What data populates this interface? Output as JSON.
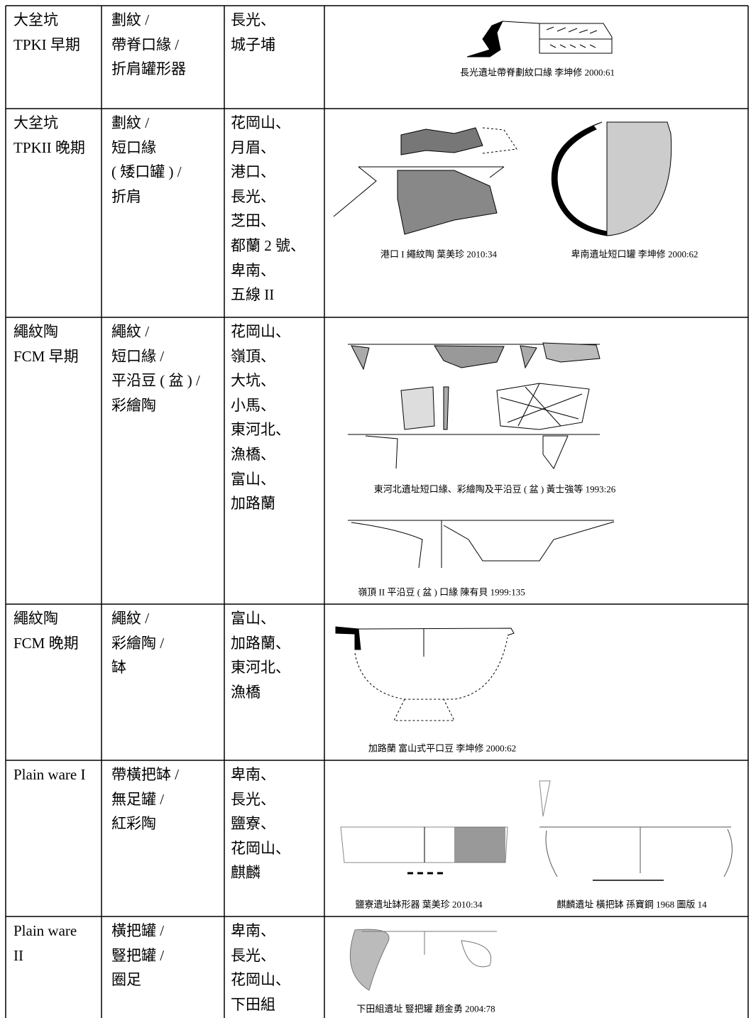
{
  "table": {
    "rows": [
      {
        "phase": [
          "大坌坑",
          "TPKI 早期"
        ],
        "features": [
          "劃紋 /",
          "帶脊口緣 /",
          "折肩罐形器"
        ],
        "sites": [
          "長光、",
          "城子埔"
        ],
        "captions": [
          "長光遺址帶脊劃紋口緣 李坤修 2000:61"
        ]
      },
      {
        "phase": [
          "大坌坑",
          "TPKII 晚期"
        ],
        "features": [
          "劃紋 /",
          "短口緣",
          "( 矮口罐 ) /",
          "折肩"
        ],
        "sites": [
          "花岡山、",
          "月眉、",
          "港口、",
          "長光、",
          "芝田、",
          "都蘭 2 號、",
          "卑南、",
          "五線 II"
        ],
        "captions": [
          "港口 I 繩紋陶 葉美珍 2010:34",
          "卑南遺址短口罐 李坤修 2000:62"
        ]
      },
      {
        "phase": [
          "繩紋陶",
          "FCM 早期"
        ],
        "features": [
          "繩紋 /",
          "短口緣 /",
          "平沿豆 ( 盆 ) /",
          "彩繪陶"
        ],
        "sites": [
          "花岡山、",
          "嶺頂、",
          "大坑、",
          "小馬、",
          "東河北、",
          "漁橋、",
          "富山、",
          "加路蘭"
        ],
        "captions": [
          "東河北遺址短口緣、彩繪陶及平沿豆 ( 盆 ) 黃士強等 1993:26",
          "嶺頂 II 平沿豆 ( 盆 ) 口緣 陳有貝 1999:135"
        ]
      },
      {
        "phase": [
          "繩紋陶",
          "FCM 晚期"
        ],
        "features": [
          "繩紋 /",
          "彩繪陶 /",
          "缽"
        ],
        "sites": [
          "富山、",
          "加路蘭、",
          "東河北、",
          "漁橋"
        ],
        "captions": [
          "加路蘭 富山式平口豆 李坤修 2000:62"
        ]
      },
      {
        "phase": [
          "Plain ware I"
        ],
        "features": [
          "帶橫把缽 /",
          "無足罐 /",
          "紅彩陶"
        ],
        "sites": [
          "卑南、",
          "長光、",
          "鹽寮、",
          "花岡山、",
          "麒麟"
        ],
        "captions": [
          "鹽寮遺址缽形器 葉美珍 2010:34",
          "麒麟遺址 橫把缽 孫寶鋼 1968 圖版 14"
        ]
      },
      {
        "phase": [
          "Plain ware",
          " II"
        ],
        "features": [
          "橫把罐 /",
          "豎把罐 /",
          "圈足"
        ],
        "sites": [
          "卑南、",
          "長光、",
          "花岡山、",
          "下田組"
        ],
        "captions": [
          "下田組遺址 豎把罐 趙金勇 2004:78"
        ]
      }
    ]
  }
}
